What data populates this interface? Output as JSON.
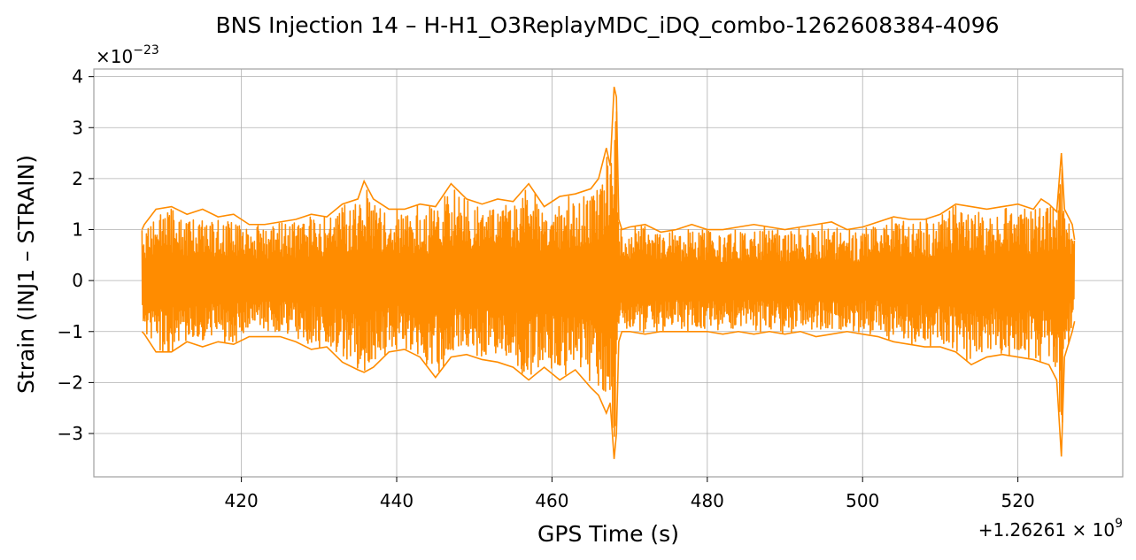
{
  "chart_data": {
    "type": "line",
    "title": "BNS Injection 14 – H-H1_O3ReplayMDC_iDQ_combo-1262608384-4096",
    "xlabel": "GPS Time (s)",
    "ylabel": "Strain (INJ1 – STRAIN)",
    "x_offset_label": "+1.26261 × 10",
    "x_offset_exp": "9",
    "y_scale_label": "×10",
    "y_scale_exp": "−23",
    "xlim": [
      401,
      533.5
    ],
    "ylim": [
      -3.85,
      4.15
    ],
    "xticks": [
      420,
      440,
      460,
      480,
      500,
      520
    ],
    "xtick_labels": [
      "420",
      "440",
      "460",
      "480",
      "500",
      "520"
    ],
    "yticks": [
      -3,
      -2,
      -1,
      0,
      1,
      2,
      3,
      4
    ],
    "ytick_labels": [
      "−3",
      "−2",
      "−1",
      "0",
      "1",
      "2",
      "3",
      "4"
    ],
    "grid": true,
    "color": "#ff8c00",
    "series": [
      {
        "x": [
          407.2,
          407.5,
          409,
          411,
          413,
          415,
          417,
          419,
          421,
          423,
          425,
          427,
          429,
          431,
          433,
          435,
          435.8,
          437,
          439,
          441,
          443,
          445,
          447,
          449,
          451,
          453,
          455,
          457,
          459,
          461,
          463,
          465,
          466,
          467,
          467.5,
          468,
          468.3,
          468.6,
          469,
          470,
          472,
          474,
          476,
          478,
          480,
          482,
          484,
          486,
          488,
          490,
          492,
          494,
          496,
          498,
          500,
          502,
          504,
          506,
          508,
          510,
          512,
          514,
          516,
          518,
          520,
          522,
          523,
          524,
          525,
          525.6,
          526,
          527,
          527.3
        ],
        "upper": [
          1.0,
          1.1,
          1.4,
          1.45,
          1.3,
          1.4,
          1.25,
          1.3,
          1.1,
          1.1,
          1.15,
          1.2,
          1.3,
          1.25,
          1.5,
          1.6,
          1.95,
          1.6,
          1.4,
          1.4,
          1.5,
          1.45,
          1.9,
          1.6,
          1.5,
          1.6,
          1.55,
          1.9,
          1.45,
          1.65,
          1.7,
          1.8,
          2.0,
          2.6,
          2.25,
          3.8,
          3.6,
          1.2,
          1.0,
          1.05,
          1.1,
          0.95,
          1.0,
          1.1,
          1.0,
          1.0,
          1.05,
          1.1,
          1.05,
          1.0,
          1.05,
          1.1,
          1.15,
          1.0,
          1.05,
          1.15,
          1.25,
          1.2,
          1.2,
          1.3,
          1.5,
          1.45,
          1.4,
          1.45,
          1.5,
          1.4,
          1.6,
          1.5,
          1.35,
          2.5,
          1.4,
          1.1,
          0.8
        ],
        "lower": [
          -1.0,
          -1.05,
          -1.4,
          -1.4,
          -1.2,
          -1.3,
          -1.2,
          -1.25,
          -1.1,
          -1.1,
          -1.1,
          -1.2,
          -1.35,
          -1.3,
          -1.6,
          -1.75,
          -1.8,
          -1.7,
          -1.4,
          -1.35,
          -1.5,
          -1.9,
          -1.5,
          -1.45,
          -1.55,
          -1.6,
          -1.7,
          -1.95,
          -1.7,
          -1.95,
          -1.75,
          -2.1,
          -2.25,
          -2.6,
          -2.4,
          -3.5,
          -3.0,
          -1.2,
          -1.0,
          -1.0,
          -1.05,
          -1.0,
          -1.0,
          -1.0,
          -1.0,
          -1.05,
          -1.0,
          -1.05,
          -1.0,
          -1.05,
          -1.0,
          -1.1,
          -1.05,
          -1.0,
          -1.05,
          -1.1,
          -1.2,
          -1.25,
          -1.3,
          -1.3,
          -1.4,
          -1.65,
          -1.5,
          -1.45,
          -1.5,
          -1.55,
          -1.6,
          -1.65,
          -1.95,
          -3.45,
          -1.5,
          -1.0,
          -0.8
        ]
      }
    ]
  }
}
